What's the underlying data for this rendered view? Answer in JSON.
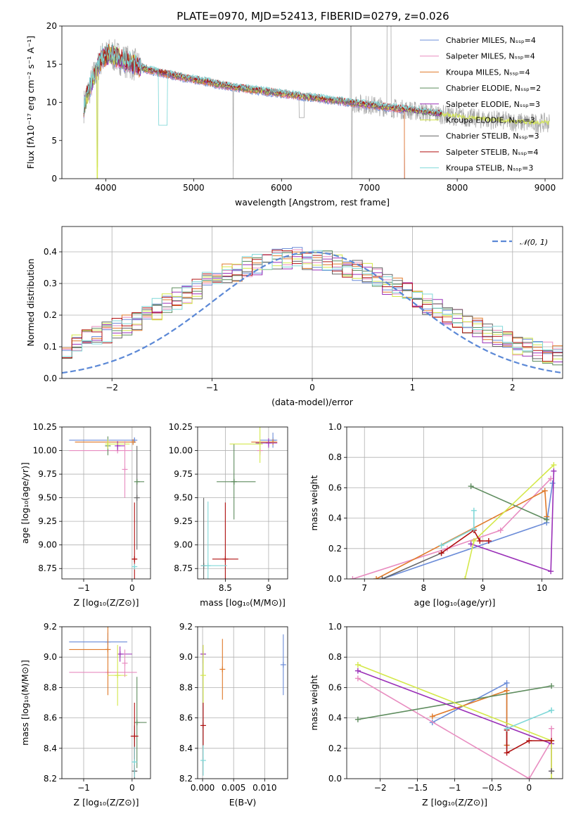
{
  "figure_title": "PLATE=0970, MJD=52413, FIBERID=0279, z=0.026",
  "series_colors": [
    "#6b8cd8",
    "#e88cc0",
    "#e07a2a",
    "#5e8c5e",
    "#9a30b8",
    "#d4e84a",
    "#666666",
    "#b01010",
    "#80d8d8"
  ],
  "chart_data": [
    {
      "type": "line",
      "id": "spectrum",
      "title": "PLATE=0970, MJD=52413, FIBERID=0279, z=0.026",
      "xlabel": "wavelength [Angstrom, rest frame]",
      "ylabel": "Flux [fλ10⁻¹⁷ erg cm⁻² s⁻¹ A⁻¹]",
      "xlim": [
        3500,
        9200
      ],
      "ylim": [
        0,
        20
      ],
      "xticks": [
        4000,
        5000,
        6000,
        7000,
        8000,
        9000
      ],
      "yticks": [
        0,
        5,
        10,
        15,
        20
      ],
      "legend": "upper right",
      "series": [
        {
          "name": "Chabrier MILES, Nₛₛₚ=4"
        },
        {
          "name": "Salpeter MILES, Nₛₛₚ=4"
        },
        {
          "name": "Kroupa MILES, Nₛₛₚ=4"
        },
        {
          "name": "Chabrier ELODIE, Nₛₛₚ=2"
        },
        {
          "name": "Salpeter ELODIE, Nₛₛₚ=3"
        },
        {
          "name": "Kroupa ELODIE, Nₛₛₚ=3"
        },
        {
          "name": "Chabrier STELIB, Nₛₛₚ=3"
        },
        {
          "name": "Salpeter STELIB, Nₛₛₚ=4"
        },
        {
          "name": "Kroupa STELIB, Nₛₛₚ=3"
        }
      ],
      "continuum": {
        "x": [
          3750,
          3850,
          3950,
          4050,
          4150,
          4250,
          4350,
          4500,
          4700,
          4900,
          5100,
          5300,
          5500,
          5700,
          5900,
          6100,
          6300,
          6500,
          6700,
          6900,
          7100,
          7300,
          7500,
          7700,
          7900,
          8100,
          8300,
          8500,
          8700,
          8830
        ],
        "y": [
          9.5,
          13,
          15.8,
          16.3,
          15.8,
          15.3,
          14.8,
          14.2,
          13.7,
          13.2,
          12.8,
          12.3,
          11.9,
          11.6,
          11.3,
          11.0,
          10.7,
          10.4,
          10.1,
          9.8,
          9.5,
          9.2,
          8.9,
          8.6,
          8.3,
          8.0,
          7.8,
          7.6,
          7.4,
          7.3
        ]
      },
      "kroupa_elodie_extends_to": 9050,
      "miles_ends_at": 7400,
      "stelib_ends_at": 7830
    },
    {
      "type": "step",
      "id": "residuals",
      "xlabel": "(data-model)/error",
      "ylabel": "Normed distribution",
      "xlim": [
        -2.5,
        2.5
      ],
      "ylim": [
        0,
        0.48
      ],
      "xticks": [
        -2,
        -1,
        0,
        1,
        2
      ],
      "yticks": [
        0.0,
        0.1,
        0.2,
        0.3,
        0.4
      ],
      "grid": true,
      "legend": "upper right",
      "reference": {
        "name": "𝒩(0, 1)",
        "mu": 0,
        "sigma": 1
      },
      "bin_width": 0.1
    },
    {
      "type": "errorbar",
      "id": "age-vs-Z",
      "xlabel": "Z [log₁₀(Z/Z⊙)]",
      "ylabel": "age  [log₁₀(age/yr)]",
      "xlim": [
        -1.45,
        0.38
      ],
      "ylim": [
        8.64,
        10.25
      ],
      "xticks": [
        -1,
        0
      ],
      "yticks": [
        8.75,
        9.0,
        9.25,
        9.5,
        9.75,
        10.0,
        10.25
      ],
      "grid": true,
      "points": [
        {
          "s": 0,
          "x": 0.05,
          "y": 10.11,
          "xerr": [
            1.35,
            0.0
          ],
          "yerr": 0.02
        },
        {
          "s": 1,
          "x": -0.3,
          "y": 10.0,
          "xerr": [
            1.0,
            0.3
          ],
          "yerr": 0.0
        },
        {
          "s": 2,
          "x": 0.02,
          "y": 10.09,
          "xerr": [
            1.2,
            0.0
          ],
          "yerr": 0.0
        },
        {
          "s": 3,
          "x": -0.5,
          "y": 10.05,
          "xerr": [
            0.0,
            0.0
          ],
          "yerr": 0.1
        },
        {
          "s": 4,
          "x": -0.3,
          "y": 10.05,
          "xerr": [
            0.0,
            0.15
          ],
          "yerr": 0.05
        },
        {
          "s": 5,
          "x": -0.5,
          "y": 10.07,
          "xerr": [
            0.0,
            0.45
          ],
          "yerr": 0.05
        },
        {
          "s": 6,
          "x": 0.1,
          "y": 9.5,
          "xerr": [
            0.0,
            0.0
          ],
          "yerr": 0.55
        },
        {
          "s": 7,
          "x": 0.05,
          "y": 8.85,
          "xerr": [
            0.05,
            0.05
          ],
          "yerr": 0.6
        },
        {
          "s": 3,
          "x": 0.1,
          "y": 9.67,
          "xerr": [
            0.0,
            0.15
          ],
          "yerr": 0.0
        },
        {
          "s": 8,
          "x": 0.05,
          "y": 8.77,
          "xerr": [
            0.02,
            0.02
          ],
          "yerr": 0.02
        },
        {
          "s": 1,
          "x": -0.15,
          "y": 9.8,
          "xerr": [
            0.0,
            0.0
          ],
          "yerr": 0.3
        }
      ]
    },
    {
      "type": "errorbar",
      "id": "age-vs-mass",
      "xlabel": "mass [log₁₀(M/M⊙)]",
      "ylabel": "",
      "xlim": [
        8.18,
        9.22
      ],
      "ylim": [
        8.64,
        10.25
      ],
      "xticks": [
        8.5,
        9.0
      ],
      "yticks": [
        8.75,
        9.0,
        9.25,
        9.5,
        9.75,
        10.0,
        10.25
      ],
      "grid": true,
      "points": [
        {
          "s": 0,
          "x": 9.05,
          "y": 10.11,
          "xerr": [
            0.15,
            0.05
          ],
          "yerr": 0.08
        },
        {
          "s": 1,
          "x": 8.9,
          "y": 10.0,
          "xerr": [
            0.0,
            0.0
          ],
          "yerr": 0.05
        },
        {
          "s": 2,
          "x": 9.05,
          "y": 10.09,
          "xerr": [
            0.25,
            0.05
          ],
          "yerr": 0.0
        },
        {
          "s": 3,
          "x": 8.6,
          "y": 9.67,
          "xerr": [
            0.2,
            0.25
          ],
          "yerr": 0.0
        },
        {
          "s": 3,
          "x": 8.6,
          "y": 9.67,
          "xerr": [
            0.0,
            0.0
          ],
          "yerr": 0.4
        },
        {
          "s": 4,
          "x": 9.0,
          "y": 10.08,
          "xerr": [
            0.15,
            0.1
          ],
          "yerr": 0.05
        },
        {
          "s": 5,
          "x": 8.9,
          "y": 10.07,
          "xerr": [
            0.35,
            0.0
          ],
          "yerr": 0.2
        },
        {
          "s": 6,
          "x": 8.25,
          "y": 8.78,
          "xerr": [
            0.0,
            0.0
          ],
          "yerr": 0.72
        },
        {
          "s": 7,
          "x": 8.5,
          "y": 8.85,
          "xerr": [
            0.15,
            0.15
          ],
          "yerr": 0.6
        },
        {
          "s": 8,
          "x": 8.3,
          "y": 8.78,
          "xerr": [
            0.08,
            0.22
          ],
          "yerr": 0.68
        }
      ]
    },
    {
      "type": "line",
      "id": "weight-vs-age",
      "xlabel": "age  [log₁₀(age/yr)]",
      "ylabel": "mass weight",
      "xlim": [
        6.7,
        10.35
      ],
      "ylim": [
        0,
        1.0
      ],
      "xticks": [
        7,
        8,
        9,
        10
      ],
      "yticks": [
        0.0,
        0.2,
        0.4,
        0.6,
        0.8,
        1.0
      ],
      "grid": true,
      "series": [
        {
          "s": 0,
          "x": [
            7.3,
            10.08,
            10.18
          ],
          "y": [
            0.0,
            0.37,
            0.63
          ]
        },
        {
          "s": 1,
          "x": [
            6.8,
            8.4,
            9.3,
            10.15
          ],
          "y": [
            0.0,
            0.2,
            0.32,
            0.66
          ]
        },
        {
          "s": 2,
          "x": [
            7.2,
            10.05,
            10.08
          ],
          "y": [
            0.0,
            0.58,
            0.41
          ]
        },
        {
          "s": 3,
          "x": [
            8.8,
            10.08
          ],
          "y": [
            0.61,
            0.39
          ]
        },
        {
          "s": 4,
          "x": [
            8.8,
            10.15,
            10.2
          ],
          "y": [
            0.23,
            0.05,
            0.71
          ]
        },
        {
          "s": 5,
          "x": [
            8.7,
            8.85,
            10.2
          ],
          "y": [
            0.0,
            0.25,
            0.75
          ]
        },
        {
          "s": 6,
          "x": [
            7.3,
            8.3
          ],
          "y": [
            0.0,
            0.17
          ]
        },
        {
          "s": 7,
          "x": [
            8.3,
            8.85,
            8.95,
            9.1
          ],
          "y": [
            0.17,
            0.32,
            0.25,
            0.25
          ]
        },
        {
          "s": 8,
          "x": [
            8.3,
            8.85,
            8.85
          ],
          "y": [
            0.22,
            0.33,
            0.45
          ]
        }
      ]
    },
    {
      "type": "errorbar",
      "id": "mass-vs-Z",
      "xlabel": "Z [log₁₀(Z/Z⊙)]",
      "ylabel": "mass [log₁₀(M/M⊙)]",
      "xlim": [
        -1.45,
        0.38
      ],
      "ylim": [
        8.2,
        9.2
      ],
      "xticks": [
        -1,
        0
      ],
      "yticks": [
        8.2,
        8.4,
        8.6,
        8.8,
        9.0,
        9.2
      ],
      "grid": true,
      "points": [
        {
          "s": 0,
          "x": -0.5,
          "y": 9.1,
          "xerr": [
            0.8,
            0.4
          ],
          "yerr": 0.06
        },
        {
          "s": 1,
          "x": -0.5,
          "y": 8.9,
          "xerr": [
            0.8,
            0.6
          ],
          "yerr": 0.0
        },
        {
          "s": 2,
          "x": -0.5,
          "y": 9.05,
          "xerr": [
            0.8,
            0.0
          ],
          "yerr": 0.3
        },
        {
          "s": 3,
          "x": 0.1,
          "y": 8.57,
          "xerr": [
            0.0,
            0.2
          ],
          "yerr": 0.3
        },
        {
          "s": 4,
          "x": -0.25,
          "y": 9.02,
          "xerr": [
            0.0,
            0.25
          ],
          "yerr": 0.05
        },
        {
          "s": 5,
          "x": -0.3,
          "y": 8.88,
          "xerr": [
            0.2,
            0.2
          ],
          "yerr": 0.2
        },
        {
          "s": 6,
          "x": 0.05,
          "y": 8.25,
          "xerr": [
            0.05,
            0.05
          ],
          "yerr": 0.3
        },
        {
          "s": 7,
          "x": 0.05,
          "y": 8.48,
          "xerr": [
            0.08,
            0.08
          ],
          "yerr": 0.22
        },
        {
          "s": 8,
          "x": 0.05,
          "y": 8.31,
          "xerr": [
            0.05,
            0.05
          ],
          "yerr": 0.1
        },
        {
          "s": 1,
          "x": -0.15,
          "y": 8.96,
          "xerr": [
            0.0,
            0.0
          ],
          "yerr": 0.09
        }
      ]
    },
    {
      "type": "errorbar",
      "id": "mass-vs-EBV",
      "xlabel": "E(B-V)",
      "ylabel": "",
      "xlim": [
        -0.0008,
        0.0137
      ],
      "ylim": [
        8.2,
        9.2
      ],
      "xticks": [
        0.0,
        0.005,
        0.01
      ],
      "xticklabels": [
        "0.000",
        "0.005",
        "0.010"
      ],
      "yticks": [
        8.2,
        8.4,
        8.6,
        8.8,
        9.0,
        9.2
      ],
      "grid": true,
      "points": [
        {
          "s": 0,
          "x": 0.013,
          "y": 8.95,
          "xerr": [
            0,
            0
          ],
          "yerr": 0.2
        },
        {
          "s": 2,
          "x": 0.0032,
          "y": 8.92,
          "xerr": [
            0,
            0
          ],
          "yerr": 0.2
        },
        {
          "s": 4,
          "x": 0.0001,
          "y": 9.02,
          "xerr": [
            0,
            0
          ],
          "yerr": 0.06
        },
        {
          "s": 5,
          "x": 0.0001,
          "y": 8.88,
          "xerr": [
            0,
            0
          ],
          "yerr": 0.2
        },
        {
          "s": 7,
          "x": 0.0001,
          "y": 8.55,
          "xerr": [
            0,
            0
          ],
          "yerr": 0.15
        },
        {
          "s": 8,
          "x": 0.0001,
          "y": 8.32,
          "xerr": [
            0,
            0
          ],
          "yerr": 0.1
        }
      ]
    },
    {
      "type": "line",
      "id": "weight-vs-Z",
      "xlabel": "Z [log₁₀(Z/Z⊙)]",
      "ylabel": "mass weight",
      "xlim": [
        -2.45,
        0.45
      ],
      "ylim": [
        0,
        1.0
      ],
      "xticks": [
        -2.0,
        -1.5,
        -1.0,
        -0.5,
        0.0
      ],
      "yticks": [
        0.0,
        0.2,
        0.4,
        0.6,
        0.8,
        1.0
      ],
      "grid": true,
      "series": [
        {
          "s": 0,
          "x": [
            -1.3,
            -0.3,
            -0.3
          ],
          "y": [
            0.37,
            0.63,
            0.22
          ]
        },
        {
          "s": 1,
          "x": [
            -2.3,
            0.0,
            0.3,
            0.3
          ],
          "y": [
            0.66,
            0.0,
            0.25,
            0.33
          ]
        },
        {
          "s": 2,
          "x": [
            -1.3,
            -0.3,
            -0.3
          ],
          "y": [
            0.41,
            0.58,
            0.22
          ]
        },
        {
          "s": 3,
          "x": [
            -2.3,
            0.3
          ],
          "y": [
            0.39,
            0.61
          ]
        },
        {
          "s": 4,
          "x": [
            -2.3,
            0.3,
            0.3
          ],
          "y": [
            0.71,
            0.23,
            0.05
          ]
        },
        {
          "s": 5,
          "x": [
            -2.3,
            0.3,
            0.3
          ],
          "y": [
            0.75,
            0.25,
            0.0
          ]
        },
        {
          "s": 6,
          "x": [
            0.3
          ],
          "y": [
            0.05
          ]
        },
        {
          "s": 7,
          "x": [
            -0.3,
            -0.3,
            0.0,
            0.3
          ],
          "y": [
            0.32,
            0.17,
            0.25,
            0.25
          ]
        },
        {
          "s": 8,
          "x": [
            -0.3,
            0.3,
            0.3
          ],
          "y": [
            0.33,
            0.45,
            0.45
          ]
        }
      ]
    }
  ]
}
